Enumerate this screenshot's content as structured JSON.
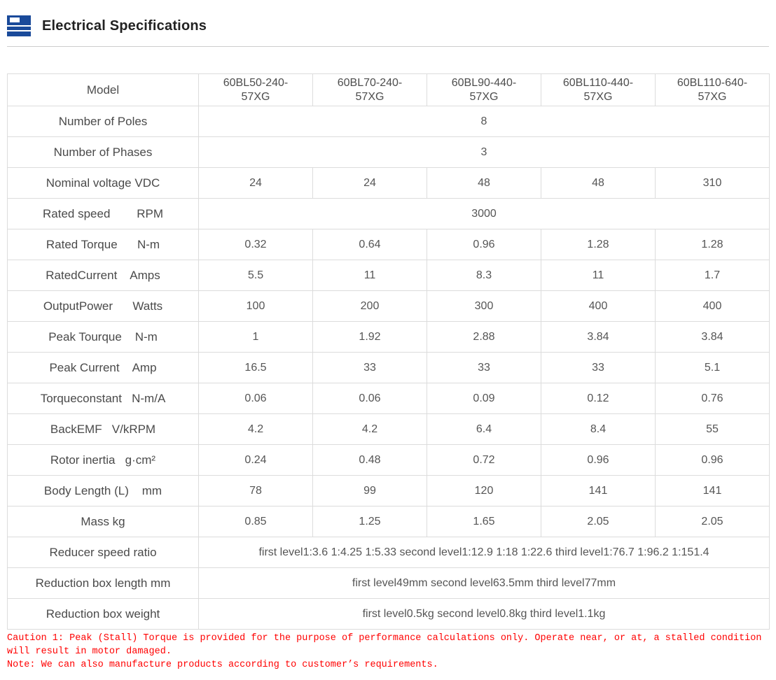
{
  "header": {
    "title": "Electrical Specifications"
  },
  "table": {
    "model_label": "Model",
    "models": [
      "60BL50-240-57XG",
      "60BL70-240-57XG",
      "60BL90-440-57XG",
      "60BL110-440-57XG",
      "60BL110-640-57XG"
    ],
    "rows": [
      {
        "label": "Number of Poles",
        "span": "8"
      },
      {
        "label": "Number of Phases",
        "span": "3"
      },
      {
        "label": "Nominal voltage VDC",
        "values": [
          "24",
          "24",
          "48",
          "48",
          "310"
        ]
      },
      {
        "label": "Rated speed        RPM",
        "span": "3000"
      },
      {
        "label": "Rated Torque      N-m",
        "values": [
          "0.32",
          "0.64",
          "0.96",
          "1.28",
          "1.28"
        ]
      },
      {
        "label": "RatedCurrent    Amps",
        "values": [
          "5.5",
          "11",
          "8.3",
          "11",
          "1.7"
        ]
      },
      {
        "label": "OutputPower      Watts",
        "values": [
          "100",
          "200",
          "300",
          "400",
          "400"
        ]
      },
      {
        "label": "Peak Tourque    N-m",
        "values": [
          "1",
          "1.92",
          "2.88",
          "3.84",
          "3.84"
        ]
      },
      {
        "label": "Peak Current    Amp",
        "values": [
          "16.5",
          "33",
          "33",
          "33",
          "5.1"
        ]
      },
      {
        "label": "Torqueconstant   N-m/A",
        "values": [
          "0.06",
          "0.06",
          "0.09",
          "0.12",
          "0.76"
        ]
      },
      {
        "label": "BackEMF   V/kRPM",
        "values": [
          "4.2",
          "4.2",
          "6.4",
          "8.4",
          "55"
        ]
      },
      {
        "label": "Rotor inertia   g·cm²",
        "values": [
          "0.24",
          "0.48",
          "0.72",
          "0.96",
          "0.96"
        ]
      },
      {
        "label": "Body Length (L)    mm",
        "values": [
          "78",
          "99",
          "120",
          "141",
          "141"
        ]
      },
      {
        "label": "Mass kg",
        "values": [
          "0.85",
          "1.25",
          "1.65",
          "2.05",
          "2.05"
        ]
      },
      {
        "label": "Reducer speed ratio",
        "span": "first level1:3.6 1:4.25 1:5.33 second level1:12.9 1:18 1:22.6 third level1:76.7 1:96.2 1:151.4"
      },
      {
        "label": "Reduction box length mm",
        "span": "first level49mm second level63.5mm third level77mm"
      },
      {
        "label": "Reduction box weight",
        "span": "first level0.5kg second level0.8kg third level1.1kg"
      }
    ]
  },
  "notes": {
    "caution": "Caution 1: Peak (Stall) Torque is provided for the purpose of performance calculations only. Operate near, or at, a stalled condition will result in motor damaged.",
    "note": "Note: We can also manufacture products according to customer’s requirements."
  },
  "colors": {
    "accent_blue": "#1a4a9a",
    "note_red": "#ff0000",
    "table_border": "#dcdcdc"
  }
}
